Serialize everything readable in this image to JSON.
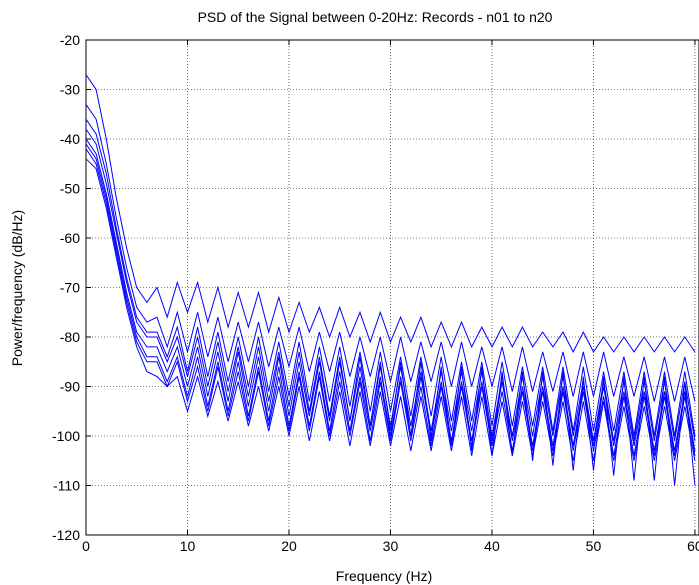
{
  "chart_data": {
    "type": "line",
    "title": "PSD of the Signal between 0-20Hz: Records - n01 to n20",
    "xlabel": "Frequency (Hz)",
    "ylabel": "Power/frequency (dB/Hz)",
    "xlim": [
      0,
      60.4
    ],
    "ylim": [
      -120,
      -20
    ],
    "x_ticks": [
      0,
      10,
      20,
      30,
      40,
      50,
      60
    ],
    "y_ticks": [
      -120,
      -110,
      -100,
      -90,
      -80,
      -70,
      -60,
      -50,
      -40,
      -30,
      -20
    ],
    "grid": "on",
    "line_color": "#0000ff",
    "series_count": 8,
    "x": [
      0,
      1,
      2,
      3,
      4,
      5,
      6,
      7,
      8,
      9,
      10,
      11,
      12,
      13,
      14,
      15,
      16,
      17,
      18,
      19,
      20,
      21,
      22,
      23,
      24,
      25,
      26,
      27,
      28,
      29,
      30,
      31,
      32,
      33,
      34,
      35,
      36,
      37,
      38,
      39,
      40,
      41,
      42,
      43,
      44,
      45,
      46,
      47,
      48,
      49,
      50,
      51,
      52,
      53,
      54,
      55,
      56,
      57,
      58,
      59,
      60
    ],
    "series": [
      {
        "values": [
          -27,
          -30,
          -40,
          -52,
          -62,
          -70,
          -73,
          -70,
          -76,
          -69,
          -75,
          -69,
          -77,
          -70,
          -78,
          -71,
          -78,
          -71,
          -79,
          -72,
          -79,
          -73,
          -79,
          -74,
          -80,
          -74,
          -80,
          -75,
          -81,
          -75,
          -81,
          -76,
          -81,
          -76,
          -82,
          -77,
          -82,
          -77,
          -82,
          -78,
          -82,
          -78,
          -82,
          -78,
          -82,
          -79,
          -82,
          -79,
          -83,
          -79,
          -83,
          -80,
          -83,
          -80,
          -83,
          -80,
          -83,
          -80,
          -83,
          -80,
          -83
        ]
      },
      {
        "values": [
          -33,
          -36,
          -45,
          -56,
          -66,
          -74,
          -77,
          -76,
          -82,
          -75,
          -83,
          -75,
          -84,
          -76,
          -85,
          -77,
          -85,
          -77,
          -86,
          -78,
          -86,
          -78,
          -87,
          -79,
          -87,
          -79,
          -88,
          -80,
          -88,
          -80,
          -89,
          -80,
          -89,
          -81,
          -89,
          -81,
          -90,
          -81,
          -90,
          -82,
          -90,
          -82,
          -91,
          -82,
          -91,
          -83,
          -91,
          -83,
          -92,
          -83,
          -92,
          -83,
          -92,
          -84,
          -92,
          -84,
          -93,
          -84,
          -93,
          -84,
          -93
        ]
      },
      {
        "values": [
          -36,
          -39,
          -47,
          -58,
          -68,
          -76,
          -79,
          -79,
          -84,
          -78,
          -87,
          -78,
          -88,
          -79,
          -89,
          -80,
          -90,
          -80,
          -91,
          -81,
          -92,
          -81,
          -93,
          -82,
          -93,
          -82,
          -94,
          -83,
          -95,
          -83,
          -95,
          -84,
          -96,
          -84,
          -96,
          -84,
          -97,
          -85,
          -97,
          -85,
          -98,
          -85,
          -98,
          -86,
          -98,
          -86,
          -99,
          -86,
          -99,
          -86,
          -99,
          -87,
          -99,
          -87,
          -100,
          -87,
          -100,
          -87,
          -100,
          -87,
          -100
        ]
      },
      {
        "values": [
          -38,
          -41,
          -49,
          -59,
          -69,
          -77,
          -80,
          -80,
          -85,
          -80,
          -88,
          -80,
          -90,
          -81,
          -91,
          -82,
          -92,
          -82,
          -93,
          -83,
          -94,
          -83,
          -95,
          -84,
          -96,
          -84,
          -97,
          -84,
          -98,
          -85,
          -99,
          -85,
          -100,
          -85,
          -101,
          -86,
          -102,
          -86,
          -103,
          -86,
          -104,
          -87,
          -104,
          -87,
          -105,
          -87,
          -106,
          -87,
          -107,
          -88,
          -107,
          -88,
          -108,
          -88,
          -109,
          -88,
          -109,
          -88,
          -110,
          -89,
          -110
        ]
      },
      {
        "values": [
          -40,
          -43,
          -51,
          -61,
          -71,
          -79,
          -82,
          -82,
          -87,
          -82,
          -90,
          -82,
          -92,
          -83,
          -93,
          -83,
          -94,
          -84,
          -95,
          -84,
          -96,
          -85,
          -96,
          -85,
          -97,
          -85,
          -97,
          -86,
          -98,
          -86,
          -98,
          -86,
          -98,
          -87,
          -99,
          -87,
          -99,
          -87,
          -99,
          -87,
          -100,
          -88,
          -100,
          -88,
          -100,
          -88,
          -100,
          -88,
          -100,
          -89,
          -101,
          -89,
          -101,
          -89,
          -101,
          -89,
          -101,
          -89,
          -101,
          -89,
          -101
        ]
      },
      {
        "values": [
          -41,
          -44,
          -52,
          -62,
          -72,
          -80,
          -84,
          -84,
          -89,
          -84,
          -92,
          -84,
          -94,
          -85,
          -95,
          -85,
          -96,
          -86,
          -97,
          -86,
          -98,
          -87,
          -98,
          -87,
          -99,
          -87,
          -99,
          -88,
          -99,
          -88,
          -100,
          -88,
          -100,
          -88,
          -100,
          -89,
          -101,
          -89,
          -101,
          -89,
          -101,
          -89,
          -101,
          -90,
          -102,
          -90,
          -102,
          -90,
          -102,
          -90,
          -102,
          -90,
          -102,
          -91,
          -102,
          -91,
          -103,
          -91,
          -103,
          -91,
          -103
        ]
      },
      {
        "values": [
          -42,
          -45,
          -53,
          -63,
          -73,
          -81,
          -85,
          -85,
          -90,
          -85,
          -93,
          -86,
          -95,
          -86,
          -96,
          -87,
          -97,
          -87,
          -98,
          -88,
          -99,
          -88,
          -99,
          -88,
          -100,
          -89,
          -100,
          -89,
          -101,
          -89,
          -101,
          -89,
          -101,
          -90,
          -102,
          -90,
          -102,
          -90,
          -102,
          -90,
          -102,
          -91,
          -103,
          -91,
          -103,
          -91,
          -103,
          -91,
          -103,
          -91,
          -103,
          -92,
          -104,
          -92,
          -104,
          -92,
          -104,
          -92,
          -104,
          -92,
          -104
        ]
      },
      {
        "values": [
          -44,
          -46,
          -54,
          -64,
          -74,
          -82,
          -87,
          -88,
          -90,
          -88,
          -95,
          -88,
          -96,
          -89,
          -97,
          -89,
          -98,
          -90,
          -99,
          -90,
          -100,
          -90,
          -101,
          -91,
          -101,
          -91,
          -102,
          -91,
          -102,
          -91,
          -102,
          -92,
          -103,
          -92,
          -103,
          -92,
          -103,
          -92,
          -104,
          -92,
          -104,
          -93,
          -104,
          -93,
          -104,
          -93,
          -104,
          -93,
          -105,
          -93,
          -105,
          -93,
          -105,
          -94,
          -105,
          -94,
          -105,
          -94,
          -105,
          -94,
          -105
        ]
      }
    ]
  }
}
